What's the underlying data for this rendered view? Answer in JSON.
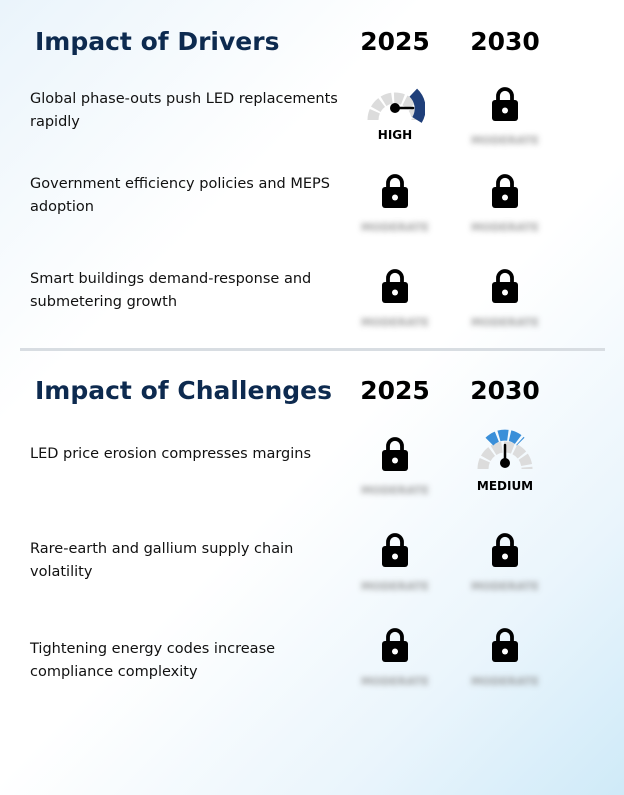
{
  "drivers": {
    "title": "Impact of Drivers",
    "year_1": "2025",
    "year_2": "2030",
    "rows": [
      {
        "label": "Global phase-outs push LED replacements rapidly",
        "cell_2025": {
          "type": "gauge",
          "level": "HIGH",
          "icon": "gauge-high-icon"
        },
        "cell_2030": {
          "type": "locked",
          "icon": "lock-icon",
          "hidden_text": "MODERATE"
        }
      },
      {
        "label": "Government efficiency policies and MEPS adoption",
        "cell_2025": {
          "type": "locked",
          "icon": "lock-icon",
          "hidden_text": "MODERATE"
        },
        "cell_2030": {
          "type": "locked",
          "icon": "lock-icon",
          "hidden_text": "MODERATE"
        }
      },
      {
        "label": "Smart buildings demand-response and submetering growth",
        "cell_2025": {
          "type": "locked",
          "icon": "lock-icon",
          "hidden_text": "MODERATE"
        },
        "cell_2030": {
          "type": "locked",
          "icon": "lock-icon",
          "hidden_text": "MODERATE"
        }
      }
    ]
  },
  "challenges": {
    "title": "Impact of Challenges",
    "year_1": "2025",
    "year_2": "2030",
    "rows": [
      {
        "label": "LED price erosion compresses margins",
        "cell_2025": {
          "type": "locked",
          "icon": "lock-icon",
          "hidden_text": "MODERATE"
        },
        "cell_2030": {
          "type": "gauge",
          "level": "MEDIUM",
          "icon": "gauge-medium-icon"
        }
      },
      {
        "label": "Rare-earth and gallium supply chain volatility",
        "cell_2025": {
          "type": "locked",
          "icon": "lock-icon",
          "hidden_text": "MODERATE"
        },
        "cell_2030": {
          "type": "locked",
          "icon": "lock-icon",
          "hidden_text": "MODERATE"
        }
      },
      {
        "label": "Tightening energy codes increase compliance complexity",
        "cell_2025": {
          "type": "locked",
          "icon": "lock-icon",
          "hidden_text": "MODERATE"
        },
        "cell_2030": {
          "type": "locked",
          "icon": "lock-icon",
          "hidden_text": "MODERATE"
        }
      }
    ]
  },
  "colors": {
    "title": "#0d2a4f",
    "gauge_high": "#1f3f7a",
    "gauge_medium": "#3a8fd9",
    "gauge_track": "#dcdcdc"
  }
}
